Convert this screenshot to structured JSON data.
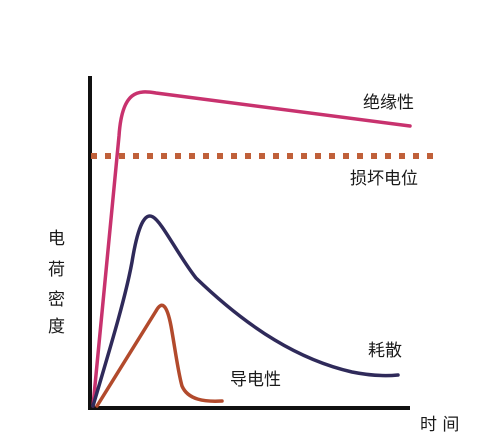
{
  "diagram": {
    "y_axis_label_chars": [
      "电",
      "荷",
      "密",
      "度"
    ],
    "x_axis_label": "时 间",
    "curves": [
      {
        "id": "insulating",
        "label": "绝缘性",
        "color": "#c8326e",
        "style": "solid"
      },
      {
        "id": "damage",
        "label": "损坏电位",
        "color": "#c0603a",
        "style": "dotted"
      },
      {
        "id": "dissipative",
        "label": "耗散",
        "color": "#2f2a5a",
        "style": "solid"
      },
      {
        "id": "conductive",
        "label": "导电性",
        "color": "#b24a2c",
        "style": "solid"
      }
    ]
  }
}
